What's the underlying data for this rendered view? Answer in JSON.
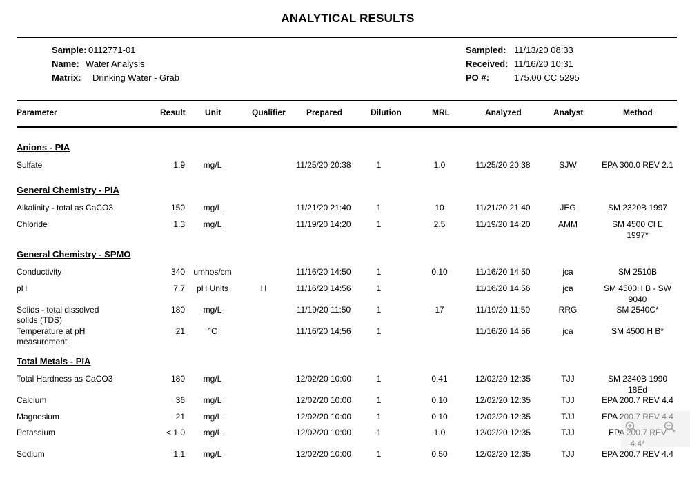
{
  "title": "ANALYTICAL RESULTS",
  "sample_info": {
    "sample_label": "Sample:",
    "sample_value": "0112771-01",
    "name_label": "Name:",
    "name_value": "Water Analysis",
    "matrix_label": "Matrix:",
    "matrix_value": "Drinking Water - Grab",
    "sampled_label": "Sampled:",
    "sampled_value": "11/13/20 08:33",
    "received_label": "Received:",
    "received_value": "11/16/20 10:31",
    "po_label": "PO #:",
    "po_value": "175.00 CC 5295"
  },
  "columns": {
    "parameter": "Parameter",
    "result": "Result",
    "unit": "Unit",
    "qualifier": "Qualifier",
    "prepared": "Prepared",
    "dilution": "Dilution",
    "mrl": "MRL",
    "analyzed": "Analyzed",
    "analyst": "Analyst",
    "method": "Method"
  },
  "sections": [
    {
      "name": "Anions - PIA",
      "rows": [
        {
          "parameter": "Sulfate",
          "parameter2": "",
          "result": "1.9",
          "unit": "mg/L",
          "qualifier": "",
          "prepared": "11/25/20 20:38",
          "dilution": "1",
          "mrl": "1.0",
          "analyzed": "11/25/20 20:38",
          "analyst": "SJW",
          "method": "EPA 300.0 REV 2.1",
          "method2": ""
        }
      ]
    },
    {
      "name": "General Chemistry - PIA",
      "rows": [
        {
          "parameter": "Alkalinity - total as CaCO3",
          "parameter2": "",
          "result": "150",
          "unit": "mg/L",
          "qualifier": "",
          "prepared": "11/21/20 21:40",
          "dilution": "1",
          "mrl": "10",
          "analyzed": "11/21/20 21:40",
          "analyst": "JEG",
          "method": "SM 2320B 1997",
          "method2": ""
        },
        {
          "parameter": "Chloride",
          "parameter2": "",
          "result": "1.3",
          "unit": "mg/L",
          "qualifier": "",
          "prepared": "11/19/20 14:20",
          "dilution": "1",
          "mrl": "2.5",
          "analyzed": "11/19/20 14:20",
          "analyst": "AMM",
          "method": "SM 4500 Cl E",
          "method2": "1997*"
        }
      ]
    },
    {
      "name": "General Chemistry - SPMO",
      "rows": [
        {
          "parameter": "Conductivity",
          "parameter2": "",
          "result": "340",
          "unit": "umhos/cm",
          "qualifier": "",
          "prepared": "11/16/20 14:50",
          "dilution": "1",
          "mrl": "0.10",
          "analyzed": "11/16/20 14:50",
          "analyst": "jca",
          "method": "SM 2510B",
          "method2": ""
        },
        {
          "parameter": "pH",
          "parameter2": "",
          "result": "7.7",
          "unit": "pH Units",
          "qualifier": "H",
          "prepared": "11/16/20 14:56",
          "dilution": "1",
          "mrl": "",
          "analyzed": "11/16/20 14:56",
          "analyst": "jca",
          "method": "SM 4500H B - SW",
          "method2": "9040"
        },
        {
          "parameter": "Solids - total dissolved",
          "parameter2": "solids (TDS)",
          "result": "180",
          "unit": "mg/L",
          "qualifier": "",
          "prepared": "11/19/20 11:50",
          "dilution": "1",
          "mrl": "17",
          "analyzed": "11/19/20 11:50",
          "analyst": "RRG",
          "method": "SM 2540C*",
          "method2": ""
        },
        {
          "parameter": "Temperature at pH",
          "parameter2": "measurement",
          "result": "21",
          "unit": "°C",
          "qualifier": "",
          "prepared": "11/16/20 14:56",
          "dilution": "1",
          "mrl": "",
          "analyzed": "11/16/20 14:56",
          "analyst": "jca",
          "method": "SM 4500 H B*",
          "method2": ""
        }
      ]
    },
    {
      "name": "Total Metals - PIA",
      "rows": [
        {
          "parameter": "Total Hardness as CaCO3",
          "parameter2": "",
          "result": "180",
          "unit": "mg/L",
          "qualifier": "",
          "prepared": "12/02/20 10:00",
          "dilution": "1",
          "mrl": "0.41",
          "analyzed": "12/02/20 12:35",
          "analyst": "TJJ",
          "method": "SM 2340B 1990",
          "method2": "18Ed"
        },
        {
          "parameter": "Calcium",
          "parameter2": "",
          "result": "36",
          "unit": "mg/L",
          "qualifier": "",
          "prepared": "12/02/20 10:00",
          "dilution": "1",
          "mrl": "0.10",
          "analyzed": "12/02/20 12:35",
          "analyst": "TJJ",
          "method": "EPA 200.7 REV 4.4",
          "method2": ""
        },
        {
          "parameter": "Magnesium",
          "parameter2": "",
          "result": "21",
          "unit": "mg/L",
          "qualifier": "",
          "prepared": "12/02/20 10:00",
          "dilution": "1",
          "mrl": "0.10",
          "analyzed": "12/02/20 12:35",
          "analyst": "TJJ",
          "method": "EPA 200.7 REV 4.4",
          "method2": ""
        },
        {
          "parameter": "Potassium",
          "parameter2": "",
          "result": "< 1.0",
          "unit": "mg/L",
          "qualifier": "",
          "prepared": "12/02/20 10:00",
          "dilution": "1",
          "mrl": "1.0",
          "analyzed": "12/02/20 12:35",
          "analyst": "TJJ",
          "method": "EPA 200.7 REV",
          "method2": "4.4*"
        },
        {
          "parameter": "Sodium",
          "parameter2": "",
          "result": "1.1",
          "unit": "mg/L",
          "qualifier": "",
          "prepared": "12/02/20 10:00",
          "dilution": "1",
          "mrl": "0.50",
          "analyzed": "12/02/20 12:35",
          "analyst": "TJJ",
          "method": "EPA 200.7 REV 4.4",
          "method2": ""
        }
      ]
    }
  ],
  "icons": {
    "zoom_in": "zoom-in-icon",
    "zoom_out": "zoom-out-icon"
  }
}
